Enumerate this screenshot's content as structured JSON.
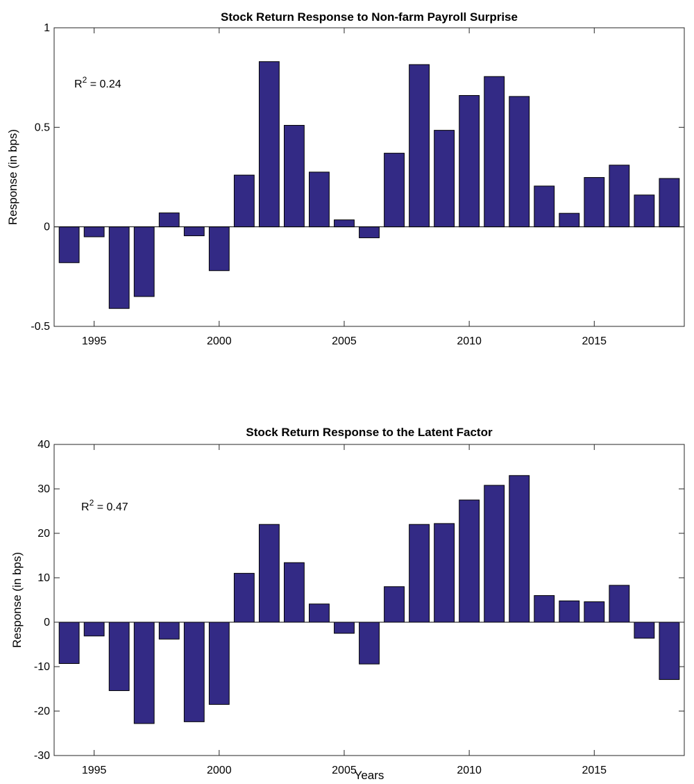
{
  "chart_data": [
    {
      "type": "bar",
      "title": "Stock Return Response to Non-farm Payroll Surprise",
      "xlabel": "",
      "ylabel": "Response (in bps)",
      "x": [
        1994,
        1995,
        1996,
        1997,
        1998,
        1999,
        2000,
        2001,
        2002,
        2003,
        2004,
        2005,
        2006,
        2007,
        2008,
        2009,
        2010,
        2011,
        2012,
        2013,
        2014,
        2015,
        2016,
        2017,
        2018
      ],
      "values": [
        -0.18,
        -0.05,
        -0.41,
        -0.35,
        0.07,
        -0.045,
        -0.22,
        0.26,
        0.83,
        0.51,
        0.275,
        0.035,
        -0.055,
        0.37,
        0.815,
        0.485,
        0.66,
        0.755,
        0.655,
        0.205,
        0.068,
        0.248,
        0.31,
        0.16,
        0.243
      ],
      "xlim": [
        1993.4,
        2018.6
      ],
      "ylim": [
        -0.5,
        1
      ],
      "xticks": [
        1995,
        2000,
        2005,
        2010,
        2015
      ],
      "xtick_labels": [
        "1995",
        "2000",
        "2005",
        "2010",
        "2015"
      ],
      "yticks": [
        -0.5,
        0,
        0.5,
        1
      ],
      "ytick_labels": [
        "-0.5",
        "0",
        "0.5",
        "1"
      ],
      "annotation": {
        "base": "R",
        "sup": "2",
        "rest": " = 0.24"
      },
      "bar_color": "#332a85",
      "grid": false
    },
    {
      "type": "bar",
      "title": "Stock Return Response to the Latent Factor",
      "xlabel": "Years",
      "ylabel": "Response (in bps)",
      "x": [
        1994,
        1995,
        1996,
        1997,
        1998,
        1999,
        2000,
        2001,
        2002,
        2003,
        2004,
        2005,
        2006,
        2007,
        2008,
        2009,
        2010,
        2011,
        2012,
        2013,
        2014,
        2015,
        2016,
        2017,
        2018
      ],
      "values": [
        -9.3,
        -3.1,
        -15.4,
        -22.8,
        -3.8,
        -22.4,
        -18.5,
        11.0,
        22.0,
        13.4,
        4.1,
        -2.5,
        -9.4,
        8.0,
        22.0,
        22.2,
        27.5,
        30.8,
        33.0,
        6.0,
        4.8,
        4.6,
        8.3,
        -3.6,
        -12.9
      ],
      "xlim": [
        1993.4,
        2018.6
      ],
      "ylim": [
        -30,
        40
      ],
      "xticks": [
        1995,
        2000,
        2005,
        2010,
        2015
      ],
      "xtick_labels": [
        "1995",
        "2000",
        "2005",
        "2010",
        "2015"
      ],
      "yticks": [
        -30,
        -20,
        -10,
        0,
        10,
        20,
        30,
        40
      ],
      "ytick_labels": [
        "-30",
        "-20",
        "-10",
        "0",
        "10",
        "20",
        "30",
        "40"
      ],
      "annotation": {
        "base": "R",
        "sup": "2",
        "rest": " = 0.47"
      },
      "bar_color": "#332a85",
      "grid": false
    }
  ]
}
